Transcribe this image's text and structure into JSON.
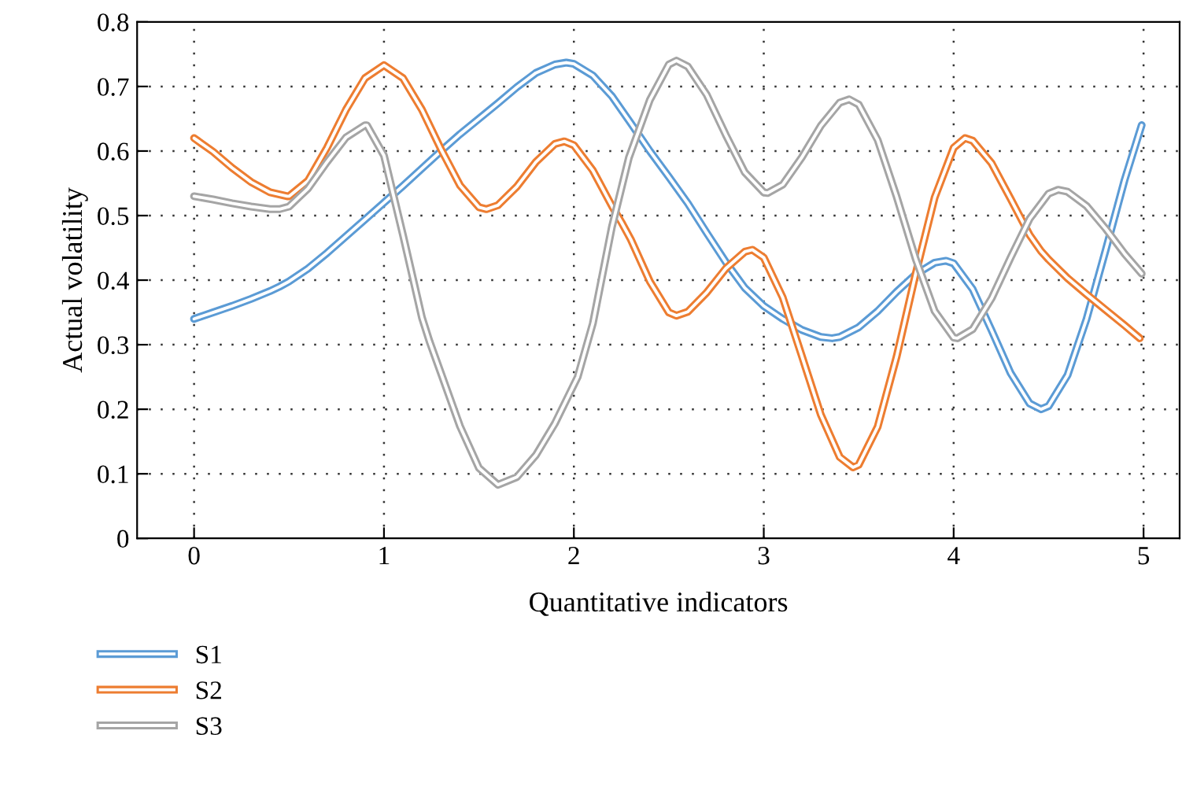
{
  "chart_data": {
    "type": "line",
    "xlabel": "Quantitative indicators",
    "ylabel": "Actual volatility",
    "xlim": [
      -0.3,
      5.19
    ],
    "ylim": [
      0,
      0.8
    ],
    "xticks": [
      0,
      1,
      2,
      3,
      4,
      5
    ],
    "yticks": [
      0,
      0.1,
      0.2,
      0.3,
      0.4,
      0.5,
      0.6,
      0.7,
      0.8
    ],
    "grid": true,
    "legend": "bottom left",
    "marker": "none",
    "line_style": "solid",
    "series": [
      {
        "name": "S1",
        "color": "#5b9bd5",
        "x": [
          0,
          0.1,
          0.2,
          0.3,
          0.4,
          0.45,
          0.5,
          0.6,
          0.7,
          0.8,
          0.9,
          1.0,
          1.1,
          1.2,
          1.3,
          1.4,
          1.5,
          1.6,
          1.7,
          1.8,
          1.9,
          1.96,
          2.0,
          2.1,
          2.2,
          2.3,
          2.4,
          2.5,
          2.6,
          2.7,
          2.8,
          2.9,
          3.0,
          3.1,
          3.2,
          3.3,
          3.36,
          3.4,
          3.5,
          3.6,
          3.7,
          3.8,
          3.9,
          3.96,
          4.0,
          4.1,
          4.2,
          4.3,
          4.4,
          4.46,
          4.5,
          4.6,
          4.7,
          4.8,
          4.9,
          4.99
        ],
        "values": [
          0.34,
          0.35,
          0.36,
          0.371,
          0.383,
          0.39,
          0.398,
          0.418,
          0.442,
          0.468,
          0.494,
          0.52,
          0.546,
          0.573,
          0.6,
          0.626,
          0.65,
          0.674,
          0.699,
          0.721,
          0.734,
          0.737,
          0.735,
          0.717,
          0.685,
          0.643,
          0.6,
          0.56,
          0.519,
          0.473,
          0.428,
          0.388,
          0.36,
          0.34,
          0.323,
          0.312,
          0.31,
          0.312,
          0.327,
          0.352,
          0.382,
          0.409,
          0.427,
          0.43,
          0.426,
          0.386,
          0.322,
          0.256,
          0.209,
          0.2,
          0.205,
          0.253,
          0.34,
          0.446,
          0.555,
          0.64
        ]
      },
      {
        "name": "S2",
        "color": "#ed7d31",
        "x": [
          0,
          0.1,
          0.2,
          0.3,
          0.4,
          0.49,
          0.5,
          0.6,
          0.7,
          0.8,
          0.9,
          1.0,
          1.1,
          1.2,
          1.3,
          1.4,
          1.5,
          1.54,
          1.6,
          1.7,
          1.8,
          1.9,
          1.95,
          2.0,
          2.1,
          2.2,
          2.25,
          2.3,
          2.4,
          2.5,
          2.54,
          2.6,
          2.7,
          2.8,
          2.9,
          2.94,
          3.0,
          3.1,
          3.2,
          3.3,
          3.4,
          3.47,
          3.5,
          3.6,
          3.7,
          3.8,
          3.9,
          4.0,
          4.06,
          4.1,
          4.2,
          4.3,
          4.4,
          4.46,
          4.5,
          4.6,
          4.7,
          4.8,
          4.9,
          4.98
        ],
        "values": [
          0.62,
          0.599,
          0.574,
          0.552,
          0.536,
          0.53,
          0.53,
          0.554,
          0.605,
          0.664,
          0.713,
          0.733,
          0.713,
          0.664,
          0.603,
          0.547,
          0.513,
          0.51,
          0.516,
          0.545,
          0.583,
          0.611,
          0.615,
          0.609,
          0.57,
          0.515,
          0.49,
          0.463,
          0.398,
          0.35,
          0.345,
          0.351,
          0.381,
          0.418,
          0.444,
          0.447,
          0.435,
          0.373,
          0.283,
          0.192,
          0.126,
          0.11,
          0.114,
          0.173,
          0.282,
          0.41,
          0.528,
          0.605,
          0.62,
          0.616,
          0.581,
          0.526,
          0.47,
          0.445,
          0.432,
          0.403,
          0.378,
          0.354,
          0.33,
          0.31
        ]
      },
      {
        "name": "S3",
        "color": "#a5a5a5",
        "x": [
          0.0,
          0.1,
          0.2,
          0.3,
          0.4,
          0.45,
          0.5,
          0.6,
          0.7,
          0.8,
          0.9,
          0.91,
          1.0,
          1.1,
          1.2,
          1.24,
          1.3,
          1.4,
          1.5,
          1.6,
          1.7,
          1.8,
          1.9,
          2.0,
          2.02,
          2.1,
          2.2,
          2.29,
          2.3,
          2.4,
          2.5,
          2.54,
          2.6,
          2.7,
          2.8,
          2.9,
          3.0,
          3.02,
          3.1,
          3.2,
          3.3,
          3.4,
          3.45,
          3.5,
          3.6,
          3.7,
          3.8,
          3.9,
          4.0,
          4.02,
          4.1,
          4.2,
          4.3,
          4.4,
          4.5,
          4.55,
          4.6,
          4.7,
          4.8,
          4.9,
          4.99
        ],
        "values": [
          0.53,
          0.525,
          0.519,
          0.514,
          0.51,
          0.51,
          0.514,
          0.542,
          0.583,
          0.621,
          0.64,
          0.64,
          0.593,
          0.47,
          0.342,
          0.305,
          0.256,
          0.174,
          0.109,
          0.083,
          0.095,
          0.129,
          0.178,
          0.238,
          0.25,
          0.333,
          0.482,
          0.59,
          0.598,
          0.679,
          0.734,
          0.74,
          0.731,
          0.687,
          0.625,
          0.567,
          0.536,
          0.535,
          0.548,
          0.59,
          0.639,
          0.675,
          0.68,
          0.672,
          0.617,
          0.529,
          0.433,
          0.352,
          0.311,
          0.31,
          0.324,
          0.372,
          0.435,
          0.495,
          0.534,
          0.54,
          0.537,
          0.515,
          0.48,
          0.441,
          0.41
        ]
      }
    ]
  }
}
